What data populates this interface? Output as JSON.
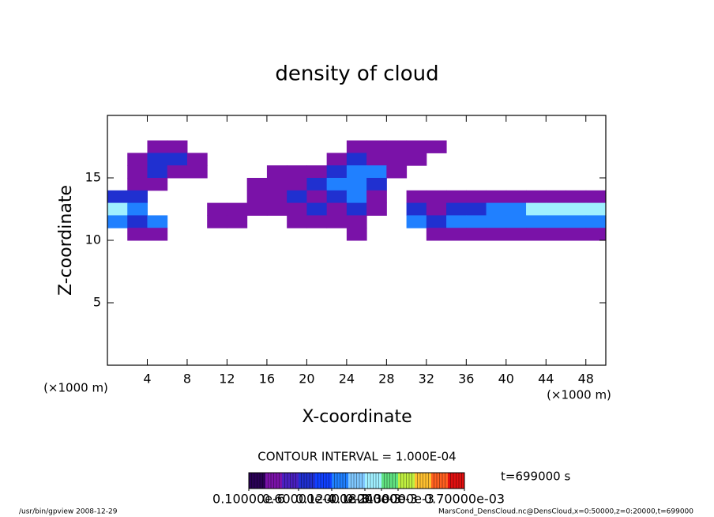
{
  "chart_data": {
    "type": "contour",
    "title": "density of cloud",
    "xlabel": "X-coordinate",
    "ylabel": "Z-coordinate",
    "xunit": "(×1000 m)",
    "yunit": "(×1000 m)",
    "note": "CONTOUR INTERVAL = 1.000E-04",
    "time": "t=699000 s",
    "footer_left": "/usr/bin/gpview  2008-12-29",
    "footer_right": "MarsCond_DensCloud.nc@DensCloud,x=0:50000,z=0:20000,t=699000",
    "xlim": [
      0,
      50
    ],
    "ylim": [
      0,
      20
    ],
    "xticks": [
      4,
      8,
      12,
      16,
      20,
      24,
      28,
      32,
      36,
      40,
      44,
      48
    ],
    "yticks": [
      5,
      10,
      15
    ],
    "x": [
      1,
      3,
      5,
      7,
      9,
      11,
      13,
      15,
      17,
      19,
      21,
      23,
      25,
      27,
      29,
      31,
      33,
      35,
      37,
      39,
      41,
      43,
      45,
      47,
      49
    ],
    "y": [
      17.5,
      16.5,
      15.5,
      14.5,
      13.5,
      12.5,
      11.5,
      10.5
    ],
    "z": [
      [
        null,
        null,
        2e-05,
        2e-05,
        null,
        null,
        null,
        null,
        null,
        null,
        null,
        null,
        2e-05,
        2e-05,
        2e-05,
        2e-05,
        2e-05,
        null,
        null,
        null,
        null,
        null,
        null,
        null,
        null
      ],
      [
        null,
        2e-05,
        6e-05,
        6e-05,
        2e-05,
        null,
        null,
        null,
        null,
        null,
        null,
        2e-05,
        6e-05,
        2e-05,
        2e-05,
        2e-05,
        null,
        null,
        null,
        null,
        null,
        null,
        null,
        null,
        null
      ],
      [
        null,
        2e-05,
        6e-05,
        2e-05,
        2e-05,
        null,
        null,
        null,
        2e-05,
        2e-05,
        2e-05,
        6e-05,
        0.00012,
        0.00012,
        2e-05,
        null,
        null,
        null,
        null,
        null,
        null,
        null,
        null,
        null,
        null
      ],
      [
        null,
        2e-05,
        2e-05,
        null,
        null,
        null,
        null,
        2e-05,
        2e-05,
        2e-05,
        6e-05,
        0.00012,
        0.00012,
        6e-05,
        null,
        null,
        null,
        null,
        null,
        null,
        null,
        null,
        null,
        null,
        null
      ],
      [
        6e-05,
        6e-05,
        null,
        null,
        null,
        null,
        null,
        2e-05,
        2e-05,
        6e-05,
        2e-05,
        6e-05,
        0.00012,
        2e-05,
        null,
        2e-05,
        2e-05,
        2e-05,
        2e-05,
        2e-05,
        2e-05,
        2e-05,
        2e-05,
        2e-05,
        2e-05
      ],
      [
        0.00018,
        0.00012,
        null,
        null,
        null,
        2e-05,
        2e-05,
        2e-05,
        2e-05,
        2e-05,
        6e-05,
        2e-05,
        6e-05,
        2e-05,
        null,
        6e-05,
        2e-05,
        6e-05,
        6e-05,
        0.00012,
        0.00012,
        0.00018,
        0.00018,
        0.00018,
        0.00018
      ],
      [
        0.00012,
        6e-05,
        0.00012,
        null,
        null,
        2e-05,
        2e-05,
        null,
        null,
        2e-05,
        2e-05,
        2e-05,
        2e-05,
        null,
        null,
        0.00012,
        6e-05,
        0.00012,
        0.00012,
        0.00012,
        0.00012,
        0.00012,
        0.00012,
        0.00012,
        0.00012
      ],
      [
        null,
        2e-05,
        2e-05,
        null,
        null,
        null,
        null,
        null,
        null,
        null,
        null,
        null,
        2e-05,
        null,
        null,
        null,
        2e-05,
        2e-05,
        2e-05,
        2e-05,
        2e-05,
        2e-05,
        2e-05,
        2e-05,
        2e-05
      ]
    ],
    "colorbar": {
      "levels": [
        1e-07,
        1e-05,
        3e-05,
        6e-05,
        9e-05,
        0.00012,
        0.00015,
        0.00018,
        0.00024,
        0.0003,
        0.0004,
        0.0005,
        0.0006,
        0.0007
      ],
      "colors": [
        "#2a0055",
        "#7a12a8",
        "#4a20c0",
        "#2030d0",
        "#1040ff",
        "#2080ff",
        "#80c8ff",
        "#a0f0ff",
        "#60e080",
        "#c0f040",
        "#ffc030",
        "#ff6020",
        "#e01010"
      ],
      "ticks": [
        {
          "value": 1e-07,
          "label": "0.10000e-6"
        },
        {
          "value": 6e-05,
          "label": "0.60000e-4"
        },
        {
          "value": 0.00012,
          "label": "0.12000e-3"
        },
        {
          "value": 0.00018,
          "label": "0.18000e-3"
        },
        {
          "value": 0.00024,
          "label": "0.24000e-3"
        },
        {
          "value": 0.0003,
          "label": "0.30000e-3"
        },
        {
          "value": 0.0007,
          "label": "0.70000e-03"
        }
      ]
    }
  }
}
